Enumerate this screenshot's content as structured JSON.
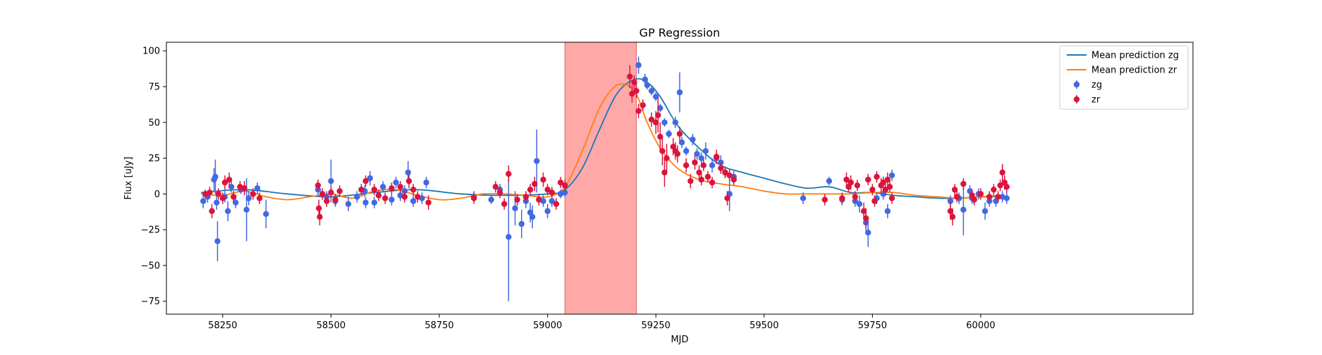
{
  "chart_data": {
    "type": "scatter",
    "title": "GP Regression",
    "xlabel": "MJD",
    "ylabel": "Flux [uJy]",
    "xlim": [
      58120,
      60490
    ],
    "ylim": [
      -84,
      106
    ],
    "xticks": [
      58250,
      58500,
      58750,
      59000,
      59250,
      59500,
      59750,
      60000
    ],
    "yticks": [
      -75,
      -50,
      -25,
      0,
      25,
      50,
      75,
      100
    ],
    "grid": false,
    "legend_position": "top-right",
    "highlight_band": {
      "x_start": 59040,
      "x_end": 59205,
      "color": "#ff9999"
    },
    "series": [
      {
        "name": "Mean prediction zg",
        "kind": "line",
        "color": "#1f77b4",
        "x": [
          58200,
          58300,
          58400,
          58500,
          58600,
          58700,
          58800,
          58900,
          59000,
          59040,
          59080,
          59120,
          59160,
          59200,
          59230,
          59260,
          59300,
          59350,
          59400,
          59450,
          59500,
          59550,
          59600,
          59650,
          59700,
          59750,
          59800,
          59850,
          59900,
          59950,
          60000,
          60050
        ],
        "y": [
          1,
          3,
          0,
          -2,
          1,
          3,
          0,
          -1,
          0,
          3,
          18,
          45,
          70,
          80,
          78,
          68,
          48,
          32,
          20,
          15,
          11,
          7,
          4,
          5,
          1,
          1,
          -1,
          -2,
          -3,
          -3,
          -2,
          -2
        ]
      },
      {
        "name": "Mean prediction zr",
        "kind": "line",
        "color": "#ff7f0e",
        "x": [
          58200,
          58250,
          58300,
          58350,
          58400,
          58450,
          58500,
          58550,
          58600,
          58650,
          58700,
          58750,
          58800,
          58850,
          58900,
          58950,
          59000,
          59040,
          59080,
          59120,
          59160,
          59200,
          59230,
          59260,
          59300,
          59350,
          59400,
          59450,
          59500,
          59550,
          59600,
          59650,
          59700,
          59750,
          59800,
          59850,
          59900,
          59950,
          60000,
          60050
        ],
        "y": [
          0,
          -1,
          2,
          -2,
          -4,
          -2,
          0,
          -3,
          2,
          3,
          -1,
          -4,
          -3,
          0,
          0,
          -1,
          -2,
          5,
          30,
          60,
          76,
          72,
          50,
          32,
          18,
          10,
          7,
          5,
          2,
          0,
          0,
          0,
          0,
          1,
          1,
          -1,
          -2,
          -3,
          -2,
          -1
        ]
      },
      {
        "name": "zg",
        "kind": "errorbar",
        "color": "#4169e1",
        "points": [
          [
            58205,
            -5,
            5
          ],
          [
            58215,
            -2,
            4
          ],
          [
            58230,
            10,
            8
          ],
          [
            58233,
            12,
            12
          ],
          [
            58238,
            -33,
            14
          ],
          [
            58236,
            -6,
            5
          ],
          [
            58255,
            -2,
            4
          ],
          [
            58262,
            -12,
            7
          ],
          [
            58270,
            5,
            4
          ],
          [
            58280,
            -6,
            4
          ],
          [
            58292,
            3,
            3
          ],
          [
            58305,
            -11,
            22
          ],
          [
            58310,
            -3,
            5
          ],
          [
            58330,
            4,
            4
          ],
          [
            58350,
            -14,
            10
          ],
          [
            58470,
            3,
            4
          ],
          [
            58490,
            -2,
            4
          ],
          [
            58500,
            9,
            15
          ],
          [
            58510,
            -5,
            4
          ],
          [
            58540,
            -7,
            5
          ],
          [
            58560,
            -2,
            4
          ],
          [
            58578,
            2,
            4
          ],
          [
            58580,
            -6,
            4
          ],
          [
            58590,
            11,
            5
          ],
          [
            58600,
            -6,
            4
          ],
          [
            58620,
            5,
            4
          ],
          [
            58640,
            -4,
            4
          ],
          [
            58650,
            8,
            4
          ],
          [
            58660,
            -1,
            4
          ],
          [
            58670,
            2,
            4
          ],
          [
            58678,
            15,
            8
          ],
          [
            58690,
            -5,
            4
          ],
          [
            58710,
            -3,
            4
          ],
          [
            58720,
            8,
            4
          ],
          [
            58830,
            -2,
            4
          ],
          [
            58870,
            -4,
            3
          ],
          [
            58890,
            3,
            4
          ],
          [
            58910,
            -30,
            45
          ],
          [
            58925,
            -10,
            12
          ],
          [
            58940,
            -21,
            10
          ],
          [
            58950,
            -5,
            5
          ],
          [
            58960,
            -13,
            7
          ],
          [
            58965,
            -16,
            8
          ],
          [
            58975,
            23,
            22
          ],
          [
            58990,
            -5,
            4
          ],
          [
            59000,
            -12,
            5
          ],
          [
            59010,
            -5,
            4
          ],
          [
            59030,
            0,
            3
          ],
          [
            59040,
            1,
            3
          ],
          [
            59210,
            90,
            6
          ],
          [
            59225,
            80,
            4
          ],
          [
            59230,
            76,
            3
          ],
          [
            59240,
            72,
            3
          ],
          [
            59250,
            68,
            3
          ],
          [
            59260,
            60,
            3
          ],
          [
            59270,
            50,
            3
          ],
          [
            59280,
            42,
            3
          ],
          [
            59295,
            50,
            4
          ],
          [
            59305,
            71,
            14
          ],
          [
            59310,
            36,
            4
          ],
          [
            59320,
            30,
            3
          ],
          [
            59335,
            38,
            4
          ],
          [
            59345,
            28,
            4
          ],
          [
            59355,
            25,
            4
          ],
          [
            59365,
            30,
            6
          ],
          [
            59380,
            20,
            5
          ],
          [
            59390,
            25,
            4
          ],
          [
            59400,
            22,
            5
          ],
          [
            59410,
            15,
            4
          ],
          [
            59420,
            0,
            12
          ],
          [
            59430,
            12,
            4
          ],
          [
            59590,
            -3,
            4
          ],
          [
            59650,
            9,
            3
          ],
          [
            59680,
            -4,
            4
          ],
          [
            59700,
            8,
            4
          ],
          [
            59710,
            -5,
            4
          ],
          [
            59720,
            -7,
            6
          ],
          [
            59735,
            -20,
            7
          ],
          [
            59740,
            -27,
            10
          ],
          [
            59760,
            -3,
            4
          ],
          [
            59775,
            0,
            4
          ],
          [
            59785,
            -12,
            5
          ],
          [
            59795,
            13,
            4
          ],
          [
            59930,
            -5,
            4
          ],
          [
            59950,
            -3,
            4
          ],
          [
            59960,
            -11,
            18
          ],
          [
            59975,
            2,
            4
          ],
          [
            59980,
            -3,
            4
          ],
          [
            59995,
            0,
            4
          ],
          [
            60010,
            -12,
            6
          ],
          [
            60020,
            -5,
            4
          ],
          [
            60035,
            -5,
            4
          ],
          [
            60050,
            -2,
            4
          ],
          [
            60060,
            -3,
            4
          ]
        ]
      },
      {
        "name": "zr",
        "kind": "errorbar",
        "color": "#dc143c",
        "points": [
          [
            58210,
            0,
            3
          ],
          [
            58220,
            1,
            4
          ],
          [
            58225,
            -12,
            5
          ],
          [
            58240,
            0,
            4
          ],
          [
            58250,
            -3,
            4
          ],
          [
            58255,
            8,
            5
          ],
          [
            58265,
            10,
            5
          ],
          [
            58275,
            -2,
            4
          ],
          [
            58290,
            5,
            4
          ],
          [
            58300,
            4,
            5
          ],
          [
            58320,
            0,
            4
          ],
          [
            58335,
            -3,
            4
          ],
          [
            58470,
            6,
            4
          ],
          [
            58472,
            -10,
            6
          ],
          [
            58474,
            -16,
            6
          ],
          [
            58480,
            0,
            4
          ],
          [
            58490,
            -5,
            4
          ],
          [
            58500,
            1,
            4
          ],
          [
            58510,
            -4,
            4
          ],
          [
            58520,
            2,
            4
          ],
          [
            58570,
            3,
            4
          ],
          [
            58580,
            9,
            4
          ],
          [
            58600,
            3,
            4
          ],
          [
            58610,
            -1,
            4
          ],
          [
            58625,
            -3,
            4
          ],
          [
            58640,
            4,
            4
          ],
          [
            58660,
            5,
            4
          ],
          [
            58670,
            -2,
            4
          ],
          [
            58680,
            9,
            5
          ],
          [
            58690,
            3,
            4
          ],
          [
            58700,
            -2,
            4
          ],
          [
            58725,
            -6,
            5
          ],
          [
            58830,
            -3,
            4
          ],
          [
            58880,
            5,
            4
          ],
          [
            58890,
            1,
            4
          ],
          [
            58900,
            -7,
            4
          ],
          [
            58910,
            14,
            6
          ],
          [
            58930,
            -4,
            4
          ],
          [
            58950,
            -2,
            4
          ],
          [
            58960,
            3,
            4
          ],
          [
            58970,
            7,
            5
          ],
          [
            58980,
            -4,
            4
          ],
          [
            58990,
            10,
            5
          ],
          [
            59000,
            3,
            4
          ],
          [
            59010,
            1,
            4
          ],
          [
            59020,
            -7,
            4
          ],
          [
            59030,
            8,
            4
          ],
          [
            59040,
            6,
            4
          ],
          [
            59190,
            82,
            8
          ],
          [
            59195,
            70,
            6
          ],
          [
            59200,
            78,
            5
          ],
          [
            59205,
            72,
            5
          ],
          [
            59210,
            58,
            5
          ],
          [
            59220,
            62,
            4
          ],
          [
            59240,
            52,
            5
          ],
          [
            59250,
            50,
            8
          ],
          [
            59255,
            55,
            12
          ],
          [
            59260,
            40,
            10
          ],
          [
            59265,
            30,
            10
          ],
          [
            59270,
            15,
            10
          ],
          [
            59275,
            25,
            10
          ],
          [
            59290,
            33,
            6
          ],
          [
            59295,
            30,
            6
          ],
          [
            59300,
            28,
            6
          ],
          [
            59305,
            42,
            5
          ],
          [
            59320,
            20,
            5
          ],
          [
            59330,
            9,
            5
          ],
          [
            59340,
            22,
            5
          ],
          [
            59350,
            15,
            5
          ],
          [
            59355,
            10,
            4
          ],
          [
            59360,
            20,
            4
          ],
          [
            59370,
            12,
            4
          ],
          [
            59380,
            8,
            4
          ],
          [
            59390,
            26,
            5
          ],
          [
            59400,
            18,
            4
          ],
          [
            59410,
            15,
            4
          ],
          [
            59415,
            -3,
            5
          ],
          [
            59420,
            13,
            4
          ],
          [
            59430,
            10,
            4
          ],
          [
            59640,
            -4,
            4
          ],
          [
            59680,
            -3,
            4
          ],
          [
            59690,
            10,
            5
          ],
          [
            59695,
            5,
            4
          ],
          [
            59700,
            8,
            5
          ],
          [
            59710,
            -2,
            4
          ],
          [
            59715,
            6,
            4
          ],
          [
            59730,
            -12,
            6
          ],
          [
            59735,
            -17,
            7
          ],
          [
            59740,
            10,
            4
          ],
          [
            59750,
            3,
            4
          ],
          [
            59755,
            -5,
            4
          ],
          [
            59760,
            12,
            4
          ],
          [
            59770,
            6,
            5
          ],
          [
            59775,
            8,
            4
          ],
          [
            59780,
            3,
            4
          ],
          [
            59785,
            10,
            5
          ],
          [
            59790,
            5,
            4
          ],
          [
            59795,
            -3,
            4
          ],
          [
            59930,
            -12,
            6
          ],
          [
            59935,
            -16,
            6
          ],
          [
            59940,
            3,
            4
          ],
          [
            59945,
            -2,
            4
          ],
          [
            59960,
            7,
            4
          ],
          [
            59980,
            -1,
            4
          ],
          [
            59985,
            -4,
            4
          ],
          [
            60000,
            0,
            4
          ],
          [
            60020,
            -2,
            4
          ],
          [
            60030,
            3,
            4
          ],
          [
            60040,
            -2,
            4
          ],
          [
            60045,
            6,
            4
          ],
          [
            60050,
            15,
            6
          ],
          [
            60055,
            8,
            5
          ],
          [
            60060,
            5,
            4
          ]
        ]
      }
    ]
  }
}
